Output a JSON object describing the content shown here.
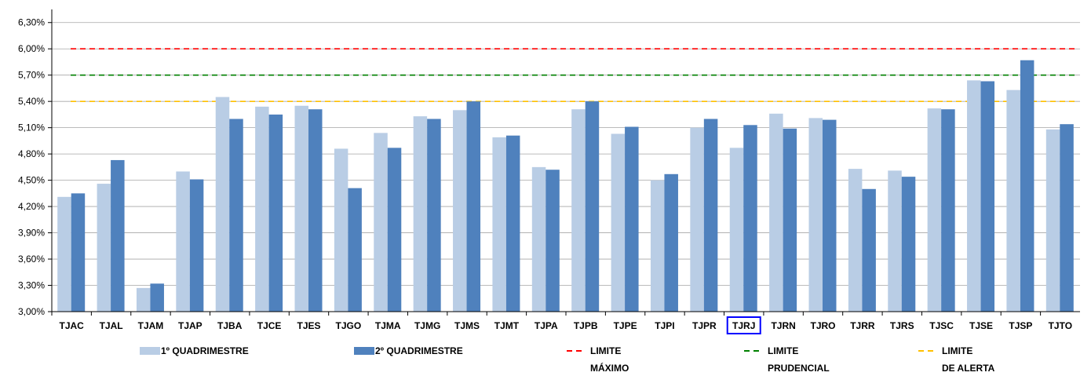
{
  "chart_data": {
    "type": "bar",
    "categories": [
      "TJAC",
      "TJAL",
      "TJAM",
      "TJAP",
      "TJBA",
      "TJCE",
      "TJES",
      "TJGO",
      "TJMA",
      "TJMG",
      "TJMS",
      "TJMT",
      "TJPA",
      "TJPB",
      "TJPE",
      "TJPI",
      "TJPR",
      "TJRJ",
      "TJRN",
      "TJRO",
      "TJRR",
      "TJRS",
      "TJSC",
      "TJSE",
      "TJSP",
      "TJTO"
    ],
    "highlighted_category": "TJRJ",
    "series": [
      {
        "name": "1º QUADRIMESTRE",
        "color": "#b9cde5",
        "values": [
          4.31,
          4.46,
          3.27,
          4.6,
          5.45,
          5.34,
          5.35,
          4.86,
          5.04,
          5.23,
          5.3,
          4.99,
          4.65,
          5.31,
          5.03,
          4.5,
          5.1,
          4.87,
          5.26,
          5.21,
          4.63,
          4.61,
          5.32,
          5.64,
          5.53,
          5.08
        ]
      },
      {
        "name": "2º QUADRIMESTRE",
        "color": "#4f81bd",
        "values": [
          4.35,
          4.73,
          3.32,
          4.51,
          5.2,
          5.25,
          5.31,
          4.41,
          4.87,
          5.2,
          5.4,
          5.01,
          4.62,
          5.4,
          5.11,
          4.57,
          5.2,
          5.13,
          5.09,
          5.19,
          4.4,
          4.54,
          5.31,
          5.63,
          5.87,
          5.14
        ]
      }
    ],
    "reference_lines": [
      {
        "name": "LIMITE MÁXIMO",
        "label_lines": [
          "LIMITE",
          "MÁXIMO"
        ],
        "value": 6.0,
        "color": "#ff0000"
      },
      {
        "name": "LIMITE PRUDENCIAL",
        "label_lines": [
          "LIMITE",
          "PRUDENCIAL"
        ],
        "value": 5.7,
        "color": "#008000"
      },
      {
        "name": "LIMITE DE ALERTA",
        "label_lines": [
          "LIMITE",
          "DE ALERTA"
        ],
        "value": 5.4,
        "color": "#ffc000"
      }
    ],
    "ylim": [
      3.0,
      6.45
    ],
    "yticks": [
      3.0,
      3.3,
      3.6,
      3.9,
      4.2,
      4.5,
      4.8,
      5.1,
      5.4,
      5.7,
      6.0,
      6.3
    ],
    "ytick_labels": [
      "3,00%",
      "3,30%",
      "3,60%",
      "3,90%",
      "4,20%",
      "4,50%",
      "4,80%",
      "5,10%",
      "5,40%",
      "5,70%",
      "6,00%",
      "6,30%"
    ],
    "grid": true,
    "legend_position": "bottom"
  }
}
